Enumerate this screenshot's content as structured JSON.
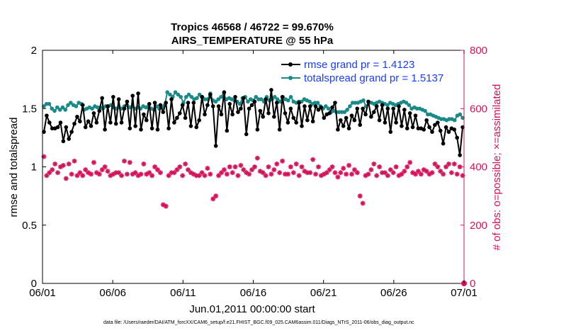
{
  "colors": {
    "rmse": "#000000",
    "spread": "#1a8a88",
    "obs": "#d6125a",
    "legend_text": "#1a3cff",
    "axis": "#000000"
  },
  "chart_data": {
    "type": "line",
    "title_line1": "Tropics 46568 / 46722 = 99.670%",
    "title_line2": "AIRS_TEMPERATURE @ 55 hPa",
    "xlabel": "Jun.01,2011 00:00:00 start",
    "ylabel_left": "rmse and totalspread",
    "ylabel_right": "# of obs: o=possible; ×=assimilated",
    "xlim": [
      0,
      30
    ],
    "ylim_left": [
      0,
      2
    ],
    "ylim_right": [
      0,
      800
    ],
    "x_ticks": [
      0,
      5,
      10,
      15,
      20,
      25,
      30
    ],
    "x_tick_labels": [
      "06/01",
      "06/06",
      "06/11",
      "06/16",
      "06/21",
      "06/26",
      "07/01"
    ],
    "y_ticks_left": [
      0,
      0.5,
      1,
      1.5,
      2
    ],
    "y_tick_labels_left": [
      "0",
      "0.5",
      "1",
      "1.5",
      "2"
    ],
    "y_ticks_right": [
      0,
      200,
      400,
      600,
      800
    ],
    "y_tick_labels_right": [
      "0",
      "200",
      "400",
      "600",
      "800"
    ],
    "legend": [
      "rmse grand pr = 1.4123",
      "totalspread grand pr = 1.5137"
    ],
    "footer": "data file: /Users/raeder/DAI/ATM_forcXX/CAM6_setup/f.e21.FHIST_BGC.f09_025.CAM6assim.011/Diags_NTrS_2011-06/obs_diag_output.nc",
    "rmse": [
      1.3,
      1.44,
      1.38,
      1.33,
      1.33,
      1.34,
      1.38,
      1.22,
      1.34,
      1.24,
      1.3,
      1.37,
      1.43,
      1.39,
      1.53,
      1.34,
      1.39,
      1.35,
      1.46,
      1.38,
      1.48,
      1.59,
      1.32,
      1.52,
      1.38,
      1.6,
      1.37,
      1.58,
      1.38,
      1.5,
      1.56,
      1.33,
      1.61,
      1.35,
      1.63,
      1.32,
      1.45,
      1.4,
      1.54,
      1.33,
      1.55,
      1.32,
      1.53,
      1.47,
      1.55,
      1.33,
      1.58,
      1.38,
      1.42,
      1.46,
      1.53,
      1.42,
      1.55,
      1.35,
      1.55,
      1.34,
      1.4,
      1.6,
      1.45,
      1.53,
      1.62,
      1.52,
      1.18,
      1.52,
      1.45,
      1.64,
      1.31,
      1.54,
      1.45,
      1.6,
      1.47,
      1.5,
      1.59,
      1.28,
      1.5,
      1.53,
      1.56,
      1.32,
      1.48,
      1.43,
      1.58,
      1.46,
      1.66,
      1.43,
      1.55,
      1.32,
      1.6,
      1.46,
      1.38,
      1.5,
      1.42,
      1.38,
      1.55,
      1.35,
      1.52,
      1.4,
      1.52,
      1.39,
      1.52,
      1.49,
      1.51,
      1.42,
      1.45,
      1.46,
      1.51,
      1.55,
      1.32,
      1.4,
      1.35,
      1.42,
      1.33,
      1.44,
      1.4,
      1.5,
      1.36,
      1.5,
      1.45,
      1.56,
      1.43,
      1.47,
      1.52,
      1.4,
      1.53,
      1.38,
      1.5,
      1.3,
      1.5,
      1.38,
      1.52,
      1.35,
      1.49,
      1.33,
      1.46,
      1.34,
      1.44,
      1.33,
      1.33,
      1.32,
      1.4,
      1.34,
      1.3,
      1.36,
      1.38,
      1.31,
      1.2,
      1.34,
      1.3,
      1.33,
      1.32,
      1.25,
      1.1,
      1.34
    ],
    "totalspread": [
      1.52,
      1.54,
      1.54,
      1.5,
      1.48,
      1.51,
      1.49,
      1.51,
      1.49,
      1.53,
      1.55,
      1.53,
      1.52,
      1.55,
      1.54,
      1.49,
      1.5,
      1.51,
      1.5,
      1.52,
      1.51,
      1.51,
      1.5,
      1.52,
      1.52,
      1.53,
      1.51,
      1.5,
      1.51,
      1.5,
      1.52,
      1.53,
      1.51,
      1.52,
      1.5,
      1.51,
      1.5,
      1.52,
      1.51,
      1.52,
      1.5,
      1.49,
      1.52,
      1.5,
      1.51,
      1.53,
      1.64,
      1.62,
      1.6,
      1.64,
      1.62,
      1.6,
      1.55,
      1.6,
      1.62,
      1.6,
      1.58,
      1.59,
      1.62,
      1.6,
      1.58,
      1.58,
      1.63,
      1.57,
      1.56,
      1.58,
      1.6,
      1.62,
      1.58,
      1.59,
      1.58,
      1.57,
      1.56,
      1.54,
      1.59,
      1.6,
      1.56,
      1.58,
      1.57,
      1.6,
      1.58,
      1.58,
      1.56,
      1.6,
      1.57,
      1.58,
      1.6,
      1.58,
      1.56,
      1.6,
      1.58,
      1.57,
      1.6,
      1.56,
      1.55,
      1.56,
      1.56,
      1.58,
      1.57,
      1.56,
      1.54,
      1.55,
      1.55,
      1.52,
      1.5,
      1.52,
      1.5,
      1.47,
      1.48,
      1.47,
      1.47,
      1.47,
      1.47,
      1.49,
      1.52,
      1.55,
      1.55,
      1.55,
      1.56,
      1.57,
      1.52,
      1.55,
      1.55,
      1.54,
      1.55,
      1.56,
      1.55,
      1.54,
      1.53,
      1.55,
      1.54,
      1.53,
      1.54,
      1.55,
      1.56,
      1.55,
      1.53,
      1.5,
      1.51,
      1.5,
      1.5,
      1.49,
      1.48,
      1.45,
      1.45,
      1.44,
      1.43,
      1.42,
      1.41,
      1.41,
      1.4,
      1.41,
      1.41,
      1.4,
      1.44,
      1.45,
      1.42
    ],
    "obs": [
      435,
      370,
      380,
      390,
      410,
      380,
      400,
      405,
      360,
      410,
      375,
      420,
      370,
      380,
      370,
      390,
      380,
      375,
      415,
      380,
      375,
      390,
      400,
      385,
      370,
      375,
      380,
      380,
      370,
      420,
      375,
      415,
      375,
      380,
      370,
      375,
      410,
      375,
      380,
      370,
      400,
      390,
      380,
      270,
      265,
      370,
      380,
      380,
      390,
      400,
      370,
      410,
      390,
      380,
      375,
      370,
      370,
      380,
      370,
      395,
      375,
      290,
      300,
      370,
      380,
      390,
      375,
      400,
      380,
      400,
      370,
      405,
      390,
      380,
      375,
      390,
      400,
      430,
      385,
      380,
      370,
      400,
      375,
      390,
      410,
      380,
      420,
      375,
      375,
      400,
      380,
      410,
      370,
      400,
      385,
      380,
      380,
      425,
      375,
      400,
      370,
      375,
      380,
      390,
      400,
      380,
      365,
      380,
      395,
      375,
      405,
      375,
      390,
      380,
      300,
      275,
      370,
      375,
      390,
      410,
      370,
      400,
      380,
      380,
      370,
      390,
      380,
      400,
      370,
      375,
      385,
      400,
      415,
      380,
      375,
      385,
      375,
      390,
      385,
      375,
      380,
      410,
      400,
      385,
      375,
      400,
      410,
      380,
      410,
      375,
      400,
      370
    ]
  }
}
